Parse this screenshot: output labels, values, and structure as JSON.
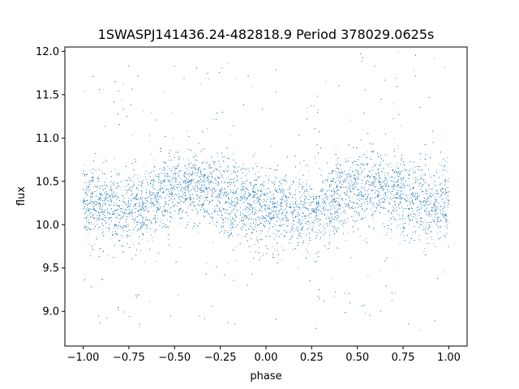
{
  "chart_data": {
    "type": "scatter",
    "title": "1SWASPJ141436.24-482818.9 Period 378029.0625s",
    "xlabel": "phase",
    "ylabel": "flux",
    "xlim": [
      -1.1,
      1.1
    ],
    "ylim": [
      8.6,
      12.05
    ],
    "xticks": [
      -1.0,
      -0.75,
      -0.5,
      -0.25,
      0.0,
      0.25,
      0.5,
      0.75,
      1.0
    ],
    "xtick_labels": [
      "−1.00",
      "−0.75",
      "−0.50",
      "−0.25",
      "0.00",
      "0.25",
      "0.50",
      "0.75",
      "1.00"
    ],
    "yticks": [
      9.0,
      9.5,
      10.0,
      10.5,
      11.0,
      11.5,
      12.0
    ],
    "ytick_labels": [
      "9.0",
      "9.5",
      "10.0",
      "10.5",
      "11.0",
      "11.5",
      "12.0"
    ],
    "grid": false,
    "marker_color": "#1f77b4",
    "series": [
      {
        "x_range": [
          -1.0,
          1.0
        ],
        "profile_phase": [
          -1.0,
          -0.9,
          -0.8,
          -0.7,
          -0.6,
          -0.5,
          -0.4,
          -0.3,
          -0.2,
          -0.1,
          0.0,
          0.1,
          0.2,
          0.3,
          0.4,
          0.5,
          0.6,
          0.7,
          0.8,
          0.9,
          1.0
        ],
        "profile_flux": [
          10.25,
          10.2,
          10.15,
          10.2,
          10.3,
          10.4,
          10.42,
          10.38,
          10.3,
          10.22,
          10.2,
          10.15,
          10.12,
          10.2,
          10.3,
          10.4,
          10.42,
          10.38,
          10.3,
          10.22,
          10.25
        ],
        "scatter_sigma": 0.22,
        "n_points": 14000
      }
    ]
  }
}
